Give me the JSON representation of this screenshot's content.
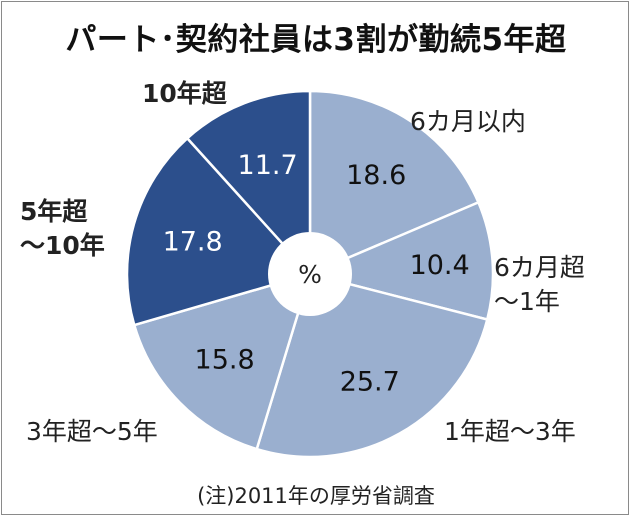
{
  "title": "パート･契約社員は3割が勤続5年超",
  "note": "(注)2011年の厚労省調査",
  "center_label": "%",
  "colors": {
    "light": "#9aafcf",
    "dark": "#2c4f8c",
    "text_dark_slice": "#ffffff",
    "text_light_slice": "#111111"
  },
  "chart_data": {
    "type": "pie",
    "unit": "%",
    "start": "12 o'clock",
    "direction": "clockwise",
    "slices": [
      {
        "label": "6カ月以内",
        "label_lines": [
          "6カ月以内"
        ],
        "value": 18.6,
        "value_label": "18.6",
        "shade": "light"
      },
      {
        "label": "6カ月超～1年",
        "label_lines": [
          "6カ月超",
          "～1年"
        ],
        "value": 10.4,
        "value_label": "10.4",
        "shade": "light"
      },
      {
        "label": "1年超～3年",
        "label_lines": [
          "1年超～3年"
        ],
        "value": 25.7,
        "value_label": "25.7",
        "shade": "light"
      },
      {
        "label": "3年超～5年",
        "label_lines": [
          "3年超～5年"
        ],
        "value": 15.8,
        "value_label": "15.8",
        "shade": "light"
      },
      {
        "label": "5年超～10年",
        "label_lines": [
          "5年超",
          "～10年"
        ],
        "value": 17.8,
        "value_label": "17.8",
        "shade": "dark"
      },
      {
        "label": "10年超",
        "label_lines": [
          "10年超"
        ],
        "value": 11.7,
        "value_label": "11.7",
        "shade": "dark"
      }
    ]
  }
}
